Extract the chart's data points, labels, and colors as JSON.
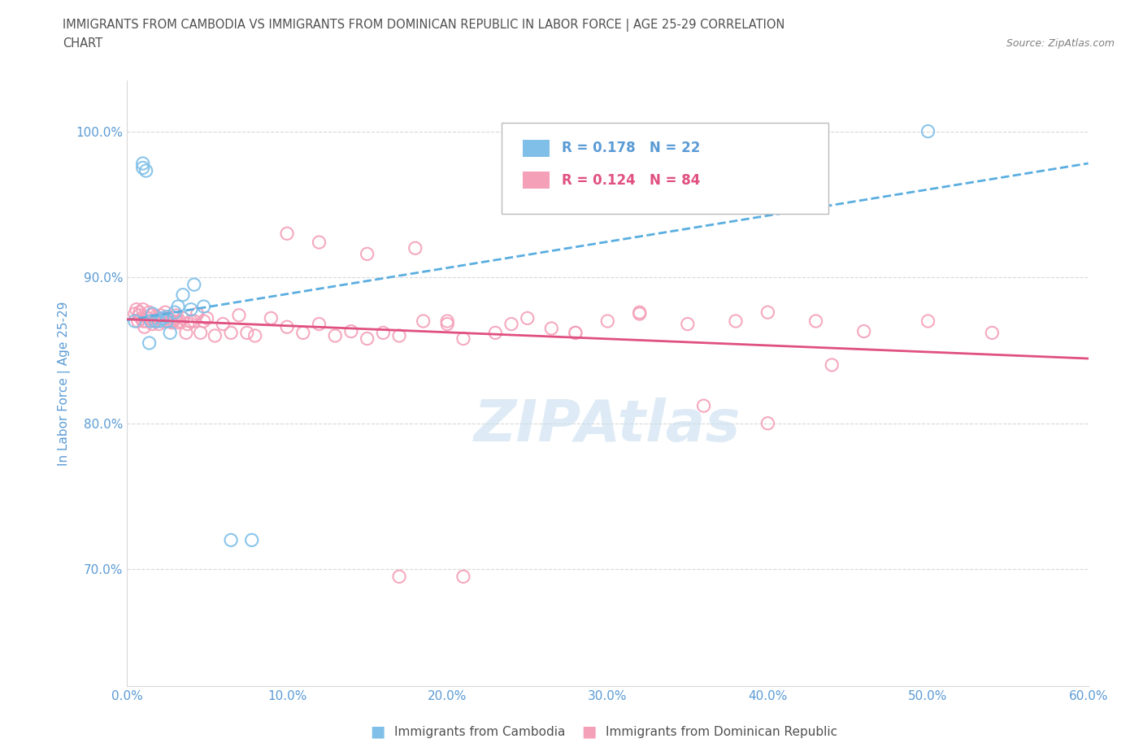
{
  "title_line1": "IMMIGRANTS FROM CAMBODIA VS IMMIGRANTS FROM DOMINICAN REPUBLIC IN LABOR FORCE | AGE 25-29 CORRELATION",
  "title_line2": "CHART",
  "source_text": "Source: ZipAtlas.com",
  "ylabel": "In Labor Force | Age 25-29",
  "xlim": [
    0.0,
    0.6
  ],
  "ylim": [
    0.62,
    1.035
  ],
  "xticks": [
    0.0,
    0.1,
    0.2,
    0.3,
    0.4,
    0.5,
    0.6
  ],
  "yticks": [
    0.7,
    0.8,
    0.9,
    1.0
  ],
  "ytick_labels": [
    "70.0%",
    "80.0%",
    "90.0%",
    "100.0%"
  ],
  "xtick_labels": [
    "0.0%",
    "10.0%",
    "20.0%",
    "30.0%",
    "40.0%",
    "50.0%",
    "60.0%"
  ],
  "legend_r_cambodia": "R = 0.178",
  "legend_n_cambodia": "N = 22",
  "legend_r_dominican": "R = 0.124",
  "legend_n_dominican": "N = 84",
  "color_cambodia": "#7fbfe8",
  "color_dominican": "#f4a0b8",
  "color_trendline_cambodia": "#5aaee0",
  "color_trendline_dominican": "#e05080",
  "color_axis_labels": "#5b9bd5",
  "color_title": "#505050",
  "color_grid": "#d8d8d8",
  "color_watermark": "#c8dff0",
  "watermark_text": "ZIPAtlas",
  "cambodia_x": [
    0.005,
    0.01,
    0.01,
    0.012,
    0.014,
    0.015,
    0.016,
    0.018,
    0.02,
    0.022,
    0.025,
    0.025,
    0.027,
    0.03,
    0.032,
    0.035,
    0.04,
    0.042,
    0.048,
    0.065,
    0.078,
    0.5
  ],
  "cambodia_y": [
    0.87,
    0.975,
    0.978,
    0.973,
    0.855,
    0.87,
    0.875,
    0.87,
    0.87,
    0.872,
    0.873,
    0.87,
    0.862,
    0.876,
    0.88,
    0.888,
    0.878,
    0.895,
    0.88,
    0.72,
    0.72,
    1.0
  ],
  "dominican_x": [
    0.005,
    0.006,
    0.007,
    0.008,
    0.008,
    0.009,
    0.01,
    0.01,
    0.011,
    0.012,
    0.013,
    0.014,
    0.015,
    0.016,
    0.017,
    0.018,
    0.019,
    0.02,
    0.021,
    0.022,
    0.023,
    0.024,
    0.025,
    0.026,
    0.027,
    0.028,
    0.029,
    0.03,
    0.031,
    0.032,
    0.033,
    0.035,
    0.037,
    0.038,
    0.04,
    0.042,
    0.044,
    0.046,
    0.048,
    0.05,
    0.055,
    0.06,
    0.065,
    0.07,
    0.075,
    0.08,
    0.09,
    0.1,
    0.11,
    0.12,
    0.13,
    0.14,
    0.15,
    0.16,
    0.17,
    0.185,
    0.2,
    0.21,
    0.23,
    0.25,
    0.265,
    0.28,
    0.3,
    0.32,
    0.35,
    0.38,
    0.4,
    0.43,
    0.46,
    0.5,
    0.54,
    0.1,
    0.12,
    0.15,
    0.18,
    0.2,
    0.24,
    0.28,
    0.32,
    0.36,
    0.4,
    0.44,
    0.17,
    0.21
  ],
  "dominican_y": [
    0.875,
    0.878,
    0.87,
    0.874,
    0.876,
    0.872,
    0.87,
    0.878,
    0.866,
    0.87,
    0.872,
    0.876,
    0.874,
    0.868,
    0.87,
    0.873,
    0.872,
    0.868,
    0.874,
    0.87,
    0.872,
    0.876,
    0.87,
    0.872,
    0.87,
    0.869,
    0.87,
    0.872,
    0.874,
    0.869,
    0.87,
    0.872,
    0.862,
    0.868,
    0.87,
    0.87,
    0.875,
    0.862,
    0.87,
    0.872,
    0.86,
    0.868,
    0.862,
    0.874,
    0.862,
    0.86,
    0.872,
    0.866,
    0.862,
    0.868,
    0.86,
    0.863,
    0.858,
    0.862,
    0.86,
    0.87,
    0.868,
    0.858,
    0.862,
    0.872,
    0.865,
    0.862,
    0.87,
    0.875,
    0.868,
    0.87,
    0.876,
    0.87,
    0.863,
    0.87,
    0.862,
    0.93,
    0.924,
    0.916,
    0.92,
    0.87,
    0.868,
    0.862,
    0.876,
    0.812,
    0.8,
    0.84,
    0.695,
    0.695
  ],
  "background_color": "#ffffff",
  "plot_bg_color": "#ffffff"
}
